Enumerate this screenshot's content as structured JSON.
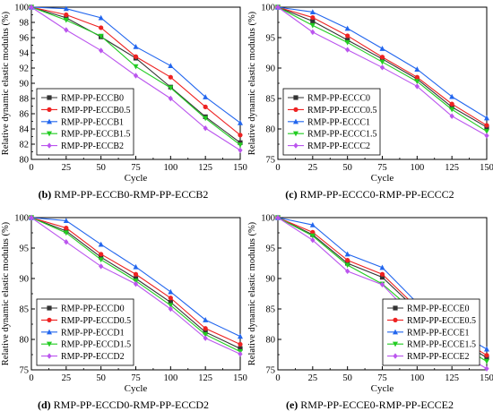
{
  "chart_data": [
    {
      "type": "line",
      "xlabel": "Cycle",
      "ylabel": "Relative dynamic elastic modulus (%)",
      "x": [
        0,
        25,
        50,
        75,
        100,
        125,
        150
      ],
      "xlim": [
        0,
        150
      ],
      "xticks": [
        0,
        25,
        50,
        75,
        100,
        125,
        150
      ],
      "ylim": [
        80,
        100
      ],
      "yticks": [
        80,
        82,
        84,
        86,
        88,
        90,
        92,
        94,
        96,
        98,
        100
      ],
      "legend_position": "bottom-left",
      "caption_letter": "(b)",
      "caption_text": " RMP-PP-ECCB0-RMP-PP-ECCB2",
      "series": [
        {
          "name": "RMP-PP-ECCB0",
          "values": [
            100,
            98.6,
            96.1,
            93.3,
            89.5,
            85.6,
            82.2
          ]
        },
        {
          "name": "RMP-PP-ECCB0.5",
          "values": [
            100,
            99.0,
            97.3,
            93.5,
            90.8,
            86.9,
            83.2
          ]
        },
        {
          "name": "RMP-PP-ECCB1",
          "values": [
            100,
            99.8,
            98.6,
            94.8,
            92.3,
            88.2,
            84.8
          ]
        },
        {
          "name": "RMP-PP-ECCB1.5",
          "values": [
            100,
            98.3,
            96.2,
            92.2,
            89.4,
            85.4,
            81.9
          ]
        },
        {
          "name": "RMP-PP-ECCB2",
          "values": [
            100,
            97.0,
            94.3,
            91.0,
            88.0,
            84.1,
            81.2
          ]
        }
      ]
    },
    {
      "type": "line",
      "xlabel": "Cycle",
      "ylabel": "Relative dynamic elastic modulus (%)",
      "x": [
        0,
        25,
        50,
        75,
        100,
        125,
        150
      ],
      "xlim": [
        0,
        150
      ],
      "xticks": [
        0,
        25,
        50,
        75,
        100,
        125,
        150
      ],
      "ylim": [
        75,
        100
      ],
      "yticks": [
        75,
        80,
        85,
        90,
        95,
        100
      ],
      "legend_position": "bottom-left",
      "caption_letter": "(c)",
      "caption_text": " RMP-PP-ECCC0-RMP-PP-ECCC2",
      "series": [
        {
          "name": "RMP-PP-ECCC0",
          "values": [
            100,
            97.7,
            94.6,
            91.5,
            88.2,
            83.6,
            80.3
          ]
        },
        {
          "name": "RMP-PP-ECCC0.5",
          "values": [
            100,
            98.3,
            95.3,
            91.8,
            88.5,
            84.1,
            80.6
          ]
        },
        {
          "name": "RMP-PP-ECCC1",
          "values": [
            100,
            99.2,
            96.5,
            93.2,
            89.8,
            85.3,
            81.8
          ]
        },
        {
          "name": "RMP-PP-ECCC1.5",
          "values": [
            100,
            97.0,
            94.2,
            91.0,
            87.8,
            83.2,
            79.6
          ]
        },
        {
          "name": "RMP-PP-ECCC2",
          "values": [
            100,
            95.9,
            93.0,
            90.1,
            87.0,
            82.1,
            78.9
          ]
        }
      ]
    },
    {
      "type": "line",
      "xlabel": "Cycle",
      "ylabel": "Relative dynamic elastic modulus (%)",
      "x": [
        0,
        25,
        50,
        75,
        100,
        125,
        150
      ],
      "xlim": [
        0,
        150
      ],
      "xticks": [
        0,
        25,
        50,
        75,
        100,
        125,
        150
      ],
      "ylim": [
        75,
        100
      ],
      "yticks": [
        75,
        80,
        85,
        90,
        95,
        100
      ],
      "legend_position": "bottom-left",
      "caption_letter": "(d)",
      "caption_text": " RMP-PP-ECCD0-RMP-PP-ECCD2",
      "series": [
        {
          "name": "RMP-PP-ECCD0",
          "values": [
            100,
            97.8,
            93.5,
            90.0,
            86.1,
            81.2,
            78.5
          ]
        },
        {
          "name": "RMP-PP-ECCD0.5",
          "values": [
            100,
            98.3,
            94.0,
            90.7,
            86.8,
            81.8,
            79.2
          ]
        },
        {
          "name": "RMP-PP-ECCD1",
          "values": [
            100,
            99.5,
            95.6,
            91.9,
            87.8,
            83.2,
            80.5
          ]
        },
        {
          "name": "RMP-PP-ECCD1.5",
          "values": [
            100,
            97.5,
            93.1,
            89.6,
            85.6,
            80.8,
            78.0
          ]
        },
        {
          "name": "RMP-PP-ECCD2",
          "values": [
            100,
            96.0,
            92.0,
            89.1,
            85.0,
            80.2,
            77.6
          ]
        }
      ]
    },
    {
      "type": "line",
      "xlabel": "Cycle",
      "ylabel": "Relative dynamic elastic modulus (%)",
      "x": [
        0,
        25,
        50,
        75,
        100,
        125,
        150
      ],
      "xlim": [
        0,
        150
      ],
      "xticks": [
        0,
        25,
        50,
        75,
        100,
        125,
        150
      ],
      "ylim": [
        75,
        100
      ],
      "yticks": [
        75,
        80,
        85,
        90,
        95,
        100
      ],
      "legend_position": "bottom-right",
      "caption_letter": "(e)",
      "caption_text": " RMP-PP-ECCE0-RMP-PP-ECCE2",
      "series": [
        {
          "name": "RMP-PP-ECCE0",
          "values": [
            100,
            97.2,
            92.5,
            90.2,
            84.8,
            80.5,
            77.0
          ]
        },
        {
          "name": "RMP-PP-ECCE0.5",
          "values": [
            100,
            97.6,
            93.0,
            90.7,
            85.2,
            80.9,
            77.4
          ]
        },
        {
          "name": "RMP-PP-ECCE1",
          "values": [
            100,
            98.8,
            94.0,
            91.8,
            86.0,
            81.7,
            78.4
          ]
        },
        {
          "name": "RMP-PP-ECCE1.5",
          "values": [
            100,
            97.0,
            92.2,
            89.1,
            84.2,
            79.8,
            76.4
          ]
        },
        {
          "name": "RMP-PP-ECCE2",
          "values": [
            100,
            96.3,
            91.2,
            89.0,
            83.0,
            78.5,
            75.2
          ]
        }
      ]
    }
  ],
  "series_style": {
    "colors": [
      "#333333",
      "#ee2222",
      "#2266ee",
      "#22cc22",
      "#bb55ee"
    ],
    "markers": [
      "square",
      "circle",
      "triangle-up",
      "triangle-down",
      "diamond"
    ]
  }
}
